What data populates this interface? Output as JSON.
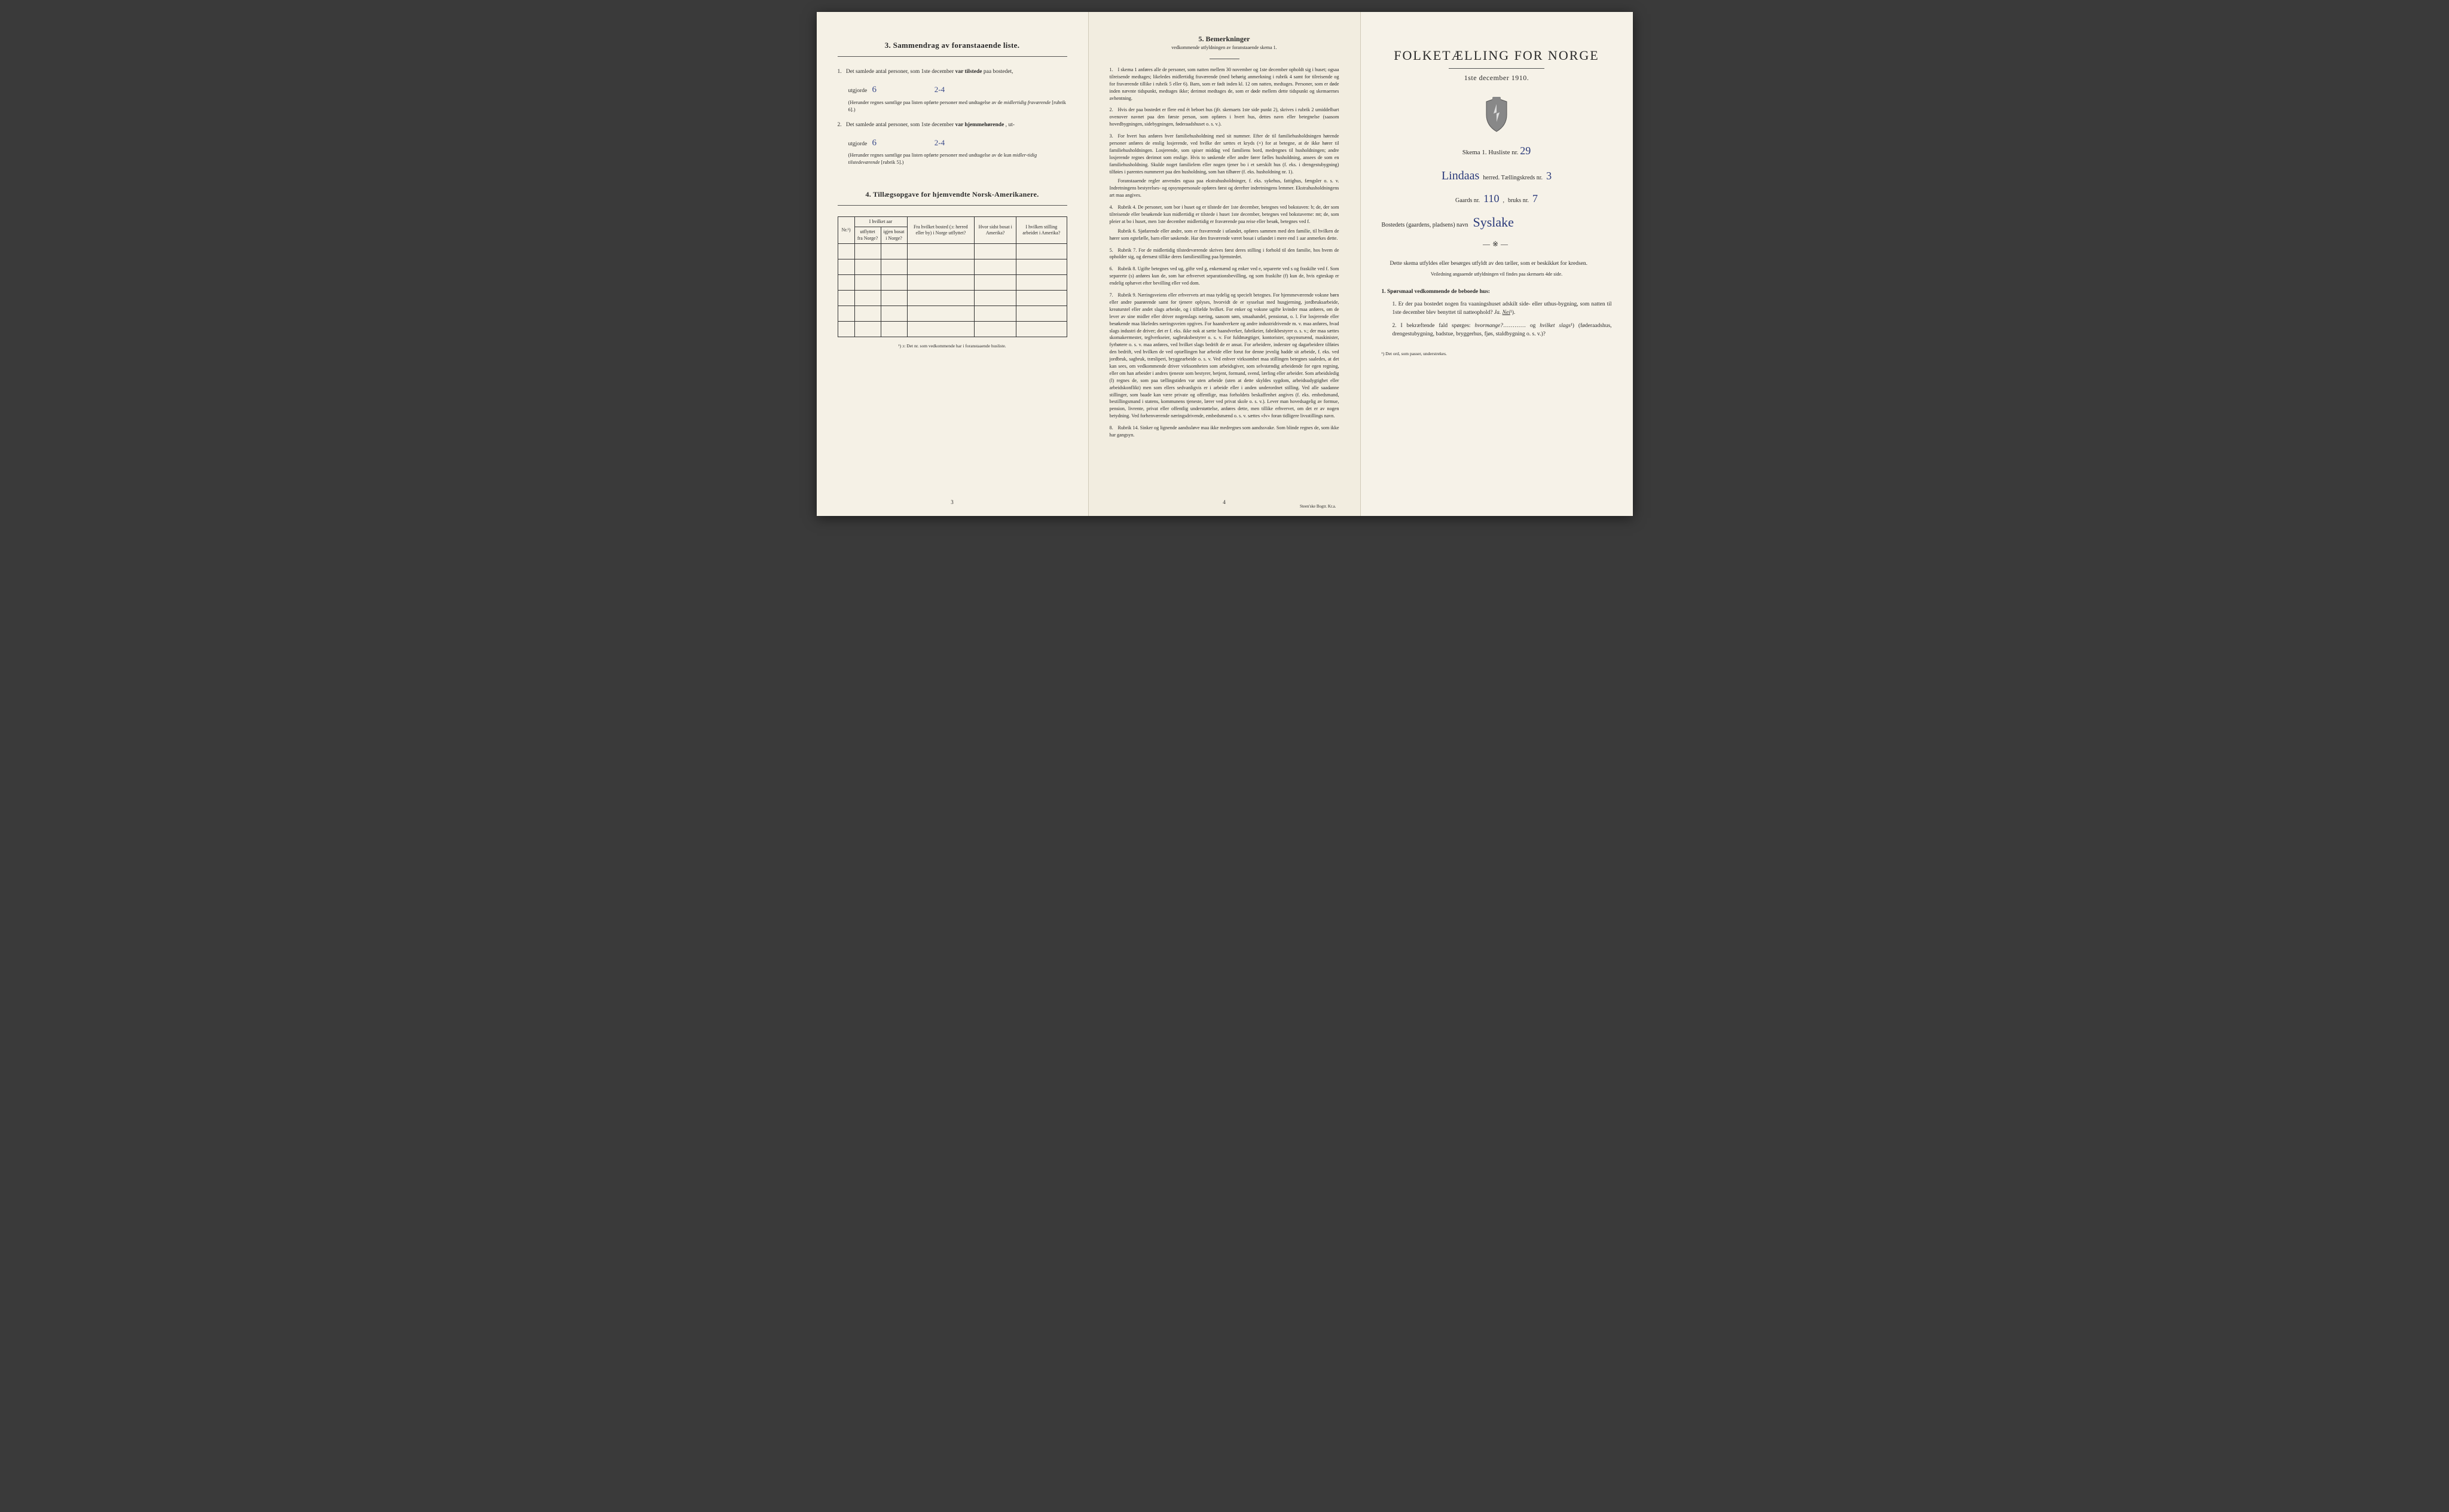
{
  "colors": {
    "paper": "#f5f1e6",
    "paper_mid": "#f2ede0",
    "ink": "#2a2a2a",
    "handwriting": "#3a4a8a",
    "border": "#333333"
  },
  "typography": {
    "body_pt": 9,
    "title_pt": 22,
    "section_pt": 13,
    "footnote_pt": 7.5,
    "font_family": "Georgia, Times New Roman, serif",
    "hand_font": "Brush Script MT, cursive"
  },
  "left": {
    "section3": {
      "title": "3.   Sammendrag av foranstaaende liste.",
      "q1_prefix": "Det samlede antal personer, som 1ste december",
      "q1_bold": "var tilstede",
      "q1_suffix": "paa bostedet,",
      "utgjorde": "utgjorde",
      "q1_val": "6",
      "q1_val2": "2-4",
      "q1_note": "(Herunder regnes samtlige paa listen opførte personer med undtagelse av de",
      "q1_note_it": "midlertidig fraværende",
      "q1_note_end": "[rubrik 6].)",
      "q2_prefix": "Det samlede antal personer, som 1ste december",
      "q2_bold": "var hjemmehørende",
      "q2_suffix": ", ut-",
      "q2_val": "6",
      "q2_val2": "2-4",
      "q2_note": "(Herunder regnes samtlige paa listen opførte personer med undtagelse av de kun",
      "q2_note_it": "midler-tidig tilstedeværende",
      "q2_note_end": "[rubrik 5].)"
    },
    "section4": {
      "title": "4.  Tillægsopgave for hjemvendte Norsk-Amerikanere.",
      "cols": {
        "c0": "Nr.¹)",
        "c1a": "I hvilket aar",
        "c1a_sub1": "utflyttet fra Norge?",
        "c1a_sub2": "igjen bosat i Norge?",
        "c2": "Fra hvilket bosted (ɔ: herred eller by) i Norge utflyttet?",
        "c3": "Hvor sidst bosat i Amerika?",
        "c4": "I hvilken stilling arbeidet i Amerika?"
      },
      "footnote": "¹) ɔ: Det nr. som vedkommende har i foranstaaende husliste.",
      "empty_rows": 6
    },
    "page_num": "3"
  },
  "mid": {
    "title": "5.   Bemerkninger",
    "subtitle": "vedkommende utfyldningen av foranstaaende skema 1.",
    "notes": [
      {
        "n": "1.",
        "t": "I skema 1 anføres alle de personer, som natten mellem 30 november og 1ste december opholdt sig i huset; ogsaa tilreisende medtages; likeledes midlertidig fraværende (med behørig anmerkning i rubrik 4 samt for tilreisende og for fraværende tillike i rubrik 5 eller 6). Barn, som er født inden kl. 12 om natten, medtages. Personer, som er døde inden nævnte tidspunkt, medtages ikke; derimot medtages de, som er døde mellem dette tidspunkt og skemaernes avhentning."
      },
      {
        "n": "2.",
        "t": "Hvis der paa bostedet er flere end ét beboet hus (jfr. skemaets 1ste side punkt 2), skrives i rubrik 2 umiddelbart ovenover navnet paa den første person, som opføres i hvert hus, dettes navn eller betegnelse (saasom hovedbygningen, sidebygningen, føderaadshuset o. s. v.)."
      },
      {
        "n": "3.",
        "t": "For hvert hus anføres hver familiehusholdning med sit nummer. Efter de til familiehusholdningen hørende personer anføres de enslig losjerende, ved hvilke der sættes et kryds (×) for at betegne, at de ikke hører til familiehusholdningen. Losjerende, som spiser middag ved familiens bord, medregnes til husholdningen; andre losjerende regnes derimot som enslige. Hvis to søskende eller andre fører fælles husholdning, ansees de som en familiehusholdning. Skulde noget familielem eller nogen tjener bo i et særskilt hus (f. eks. i drengestubygning) tilføies i parentes nummeret paa den husholdning, som han tilhører (f. eks. husholdning nr. 1).",
        "sub": "Foranstaaende regler anvendes ogsaa paa ekstrahusholdninger, f. eks. sykehus, fattighus, fængsler o. s. v. Indretningens bestyrelses- og opsynspersonale opføres først og derefter indretningens lemmer. Ekstrahusholdningens art maa angives."
      },
      {
        "n": "4.",
        "t": "Rubrik 4. De personer, som bor i huset og er tilstede der 1ste december, betegnes ved bokstaven: b; de, der som tilreisende eller besøkende kun midlertidig er tilstede i huset 1ste december, betegnes ved bokstaverne: mt; de, som pleier at bo i huset, men 1ste december midlertidig er fraværende paa reise eller besøk, betegnes ved f.",
        "sub": "Rubrik 6. Sjøfarende eller andre, som er fraværende i utlandet, opføres sammen med den familie, til hvilken de hører som egtefælle, barn eller søskende. Har den fraværende været bosat i utlandet i mere end 1 aar anmerkes dette."
      },
      {
        "n": "5.",
        "t": "Rubrik 7. For de midlertidig tilstedeværende skrives først deres stilling i forhold til den familie, hos hvem de opholder sig, og dernæst tillike deres familiestilling paa hjemstedet."
      },
      {
        "n": "6.",
        "t": "Rubrik 8. Ugifte betegnes ved ug, gifte ved g, enkemænd og enker ved e, separerte ved s og fraskilte ved f. Som separerte (s) anføres kun de, som har erhvervet separationsbevilling, og som fraskilte (f) kun de, hvis egteskap er endelig ophævet efter bevilling eller ved dom."
      },
      {
        "n": "7.",
        "t": "Rubrik 9. Næringsveiens eller erhvervets art maa tydelig og specielt betegnes. For hjemmeværende voksne børn eller andre paarørende samt for tjenere oplyses, hvorvidt de er sysselsat med husgjerning, jordbruksarbeide, kreaturstel eller andet slags arbeide, og i tilfælde hvilket. For enker og voksne ugifte kvinder maa anføres, om de lever av sine midler eller driver nogenslags næring, saasom søm, smaahandel, pensionat, o. l. For losjerende eller besøkende maa likeledes næringsveien opgives. For haandverkere og andre industridrivende m. v. maa anføres, hvad slags industri de driver; det er f. eks. ikke nok at sætte haandverker, fabrikeier, fabrikbestyrer o. s. v.; der maa sættes skomakermester, teglverkseier, sagbruksbestyrer o. s. v. For fuldmægtiger, kontorister, opsynsmænd, maskinister, fyrbøtere o. s. v. maa anføres, ved hvilket slags bedrift de er ansat. For arbeidere, inderster og dagarbeidere tilføies den bedrift, ved hvilken de ved optællingen har arbeide eller forut for denne jevnlig hadde sit arbeide, f. eks. ved jordbruk, sagbruk, træsliperi, bryggearbeide o. s. v. Ved enhver virksomhet maa stillingen betegnes saaledes, at det kan sees, om vedkommende driver virksomheten som arbeidsgiver, som selvstændig arbeidende for egen regning, eller om han arbeider i andres tjeneste som bestyrer, betjent, formand, svend, lærling eller arbeider. Som arbeidsledig (l) regnes de, som paa tællingstiden var uten arbeide (uten at dette skyldes sygdom, arbeidsudygtighet eller arbeidskonflikt) men som ellers sedvanligvis er i arbeide eller i anden underordnet stilling. Ved alle saadanne stillinger, som baade kan være private og offentlige, maa forholdets beskaffenhet angives (f. eks. embedsmand, bestillingsmand i statens, kommunens tjeneste, lærer ved privat skole o. s. v.). Lever man hovedsagelig av formue, pension, livrente, privat eller offentlig understøttelse, anføres dette, men tillike erhvervet, om det er av nogen betydning. Ved forhenværende næringsdrivende, embedsmænd o. s. v. sættes «fv» foran tidligere livsstillings navn."
      },
      {
        "n": "8.",
        "t": "Rubrik 14. Sinker og lignende aandssløve maa ikke medregnes som aandssvake. Som blinde regnes de, som ikke har gangsyn."
      }
    ],
    "page_num": "4",
    "imprint": "Steen'ske Bogtr.  Kr.a."
  },
  "right": {
    "title": "FOLKETÆLLING FOR NORGE",
    "date": "1ste december 1910.",
    "skema": "Skema 1.   Husliste nr.",
    "husliste_nr": "29",
    "herred_hand": "Lindaas",
    "herred_label": "herred.  Tællingskreds nr.",
    "kreds_nr": "3",
    "gaards_label": "Gaards nr.",
    "gaards_nr": "110",
    "bruks_label": "bruks nr.",
    "bruks_nr": "7",
    "bosted_label": "Bostedets (gaardens, pladsens) navn",
    "bosted_hand": "Syslake",
    "instr": "Dette skema utfyldes eller besørges utfyldt av den tæller, som er beskikket for kredsen.",
    "instr_sub": "Veiledning angaaende utfyldningen vil findes paa skemaets 4de side.",
    "q_lead": "1. Spørsmaal vedkommende de beboede hus:",
    "q1": "Er der paa bostedet nogen fra vaaningshuset adskilt side- eller uthus-bygning, som natten til 1ste december blev benyttet til natteophold?",
    "q1_ja": "Ja.",
    "q1_nei": "Nei",
    "q1_sup": "¹).",
    "q2": "I bekræftende fald spørges:",
    "q2_it1": "hvormange?",
    "q2_mid": "og",
    "q2_it2": "hvilket slags",
    "q2_sup": "¹)",
    "q2_tail": "(føderaadshus, drengestubygning, badstue, bryggerhus, fjøs, staldbygning o. s. v.)?",
    "footnote": "¹) Det ord, som passer, understrekes."
  }
}
